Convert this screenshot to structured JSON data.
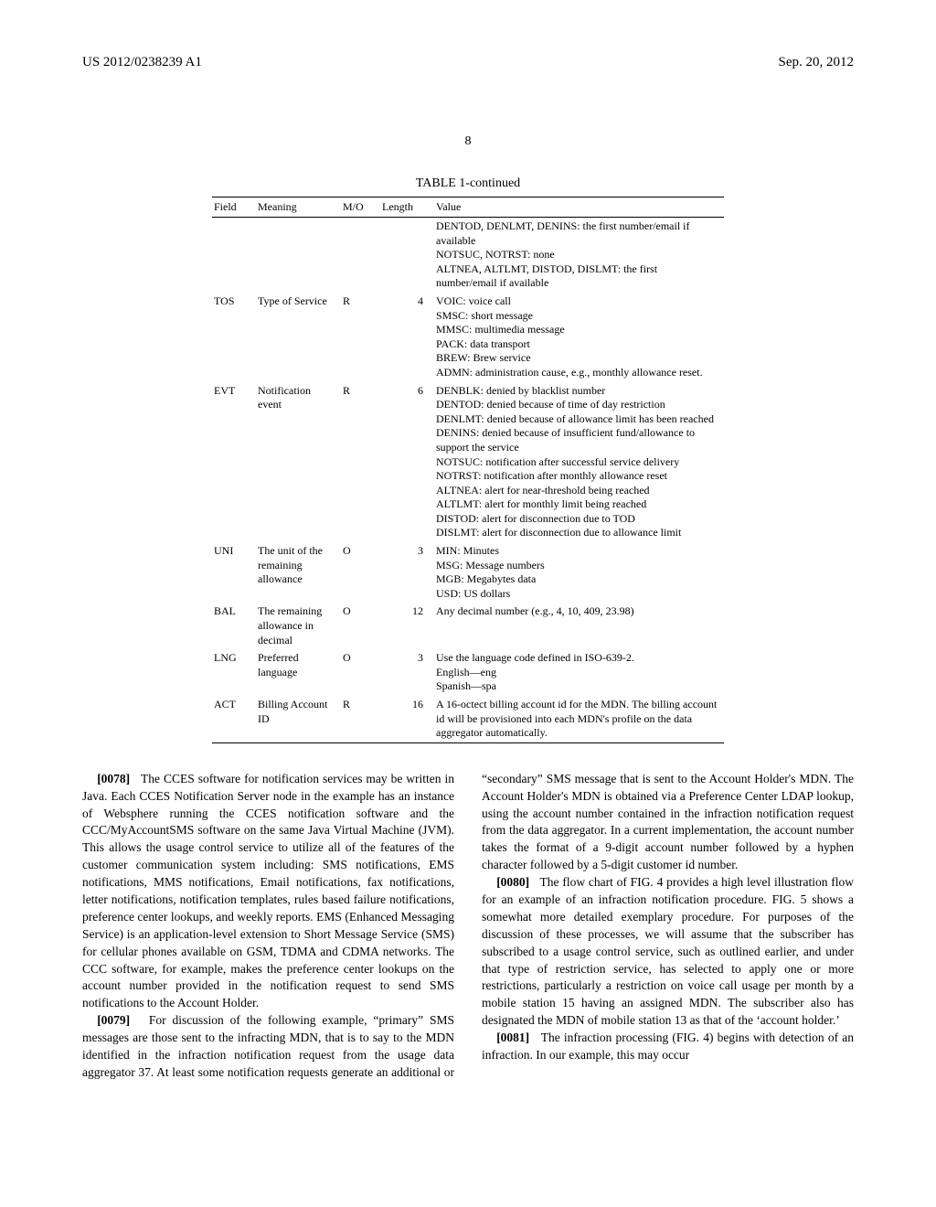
{
  "header": {
    "publication_id": "US 2012/0238239 A1",
    "publication_date": "Sep. 20, 2012"
  },
  "page_number": "8",
  "table": {
    "caption": "TABLE 1-continued",
    "columns": [
      "Field",
      "Meaning",
      "M/O",
      "Length",
      "Value"
    ],
    "rows": [
      {
        "field": "",
        "meaning": "",
        "mo": "",
        "length": "",
        "value": "DENTOD, DENLMT, DENINS: the first number/email if available\nNOTSUC, NOTRST: none\nALTNEA, ALTLMT, DISTOD, DISLMT: the first number/email if available"
      },
      {
        "field": "TOS",
        "meaning": "Type of Service",
        "mo": "R",
        "length": "4",
        "value": "VOIC: voice call\nSMSC: short message\nMMSC: multimedia message\nPACK: data transport\nBREW: Brew service\nADMN: administration cause, e.g., monthly allowance reset."
      },
      {
        "field": "EVT",
        "meaning": "Notification event",
        "mo": "R",
        "length": "6",
        "value": "DENBLK: denied by blacklist number\nDENTOD: denied because of time of day restriction\nDENLMT: denied because of allowance limit has been reached\nDENINS: denied because of insufficient fund/allowance to support the service\nNOTSUC: notification after successful service delivery\nNOTRST: notification after monthly allowance reset\nALTNEA: alert for near-threshold being reached\nALTLMT: alert for monthly limit being reached\nDISTOD: alert for disconnection due to TOD\nDISLMT: alert for disconnection due to allowance limit"
      },
      {
        "field": "UNI",
        "meaning": "The unit of the remaining allowance",
        "mo": "O",
        "length": "3",
        "value": "MIN: Minutes\nMSG: Message numbers\nMGB: Megabytes data\nUSD: US dollars"
      },
      {
        "field": "BAL",
        "meaning": "The remaining allowance in decimal",
        "mo": "O",
        "length": "12",
        "value": "Any decimal number (e.g., 4, 10, 409, 23.98)"
      },
      {
        "field": "LNG",
        "meaning": "Preferred language",
        "mo": "O",
        "length": "3",
        "value": "Use the language code defined in ISO-639-2.\nEnglish—eng\nSpanish—spa"
      },
      {
        "field": "ACT",
        "meaning": "Billing Account ID",
        "mo": "R",
        "length": "16",
        "value": "A 16-octect billing account id for the MDN. The billing account id will be provisioned into each MDN's profile on the data aggregator automatically."
      }
    ]
  },
  "paragraphs": {
    "p78": {
      "num": "[0078]",
      "text": "The CCES software for notification services may be written in Java. Each CCES Notification Server node in the example has an instance of Websphere running the CCES notification software and the CCC/MyAccountSMS software on the same Java Virtual Machine (JVM). This allows the usage control service to utilize all of the features of the customer communication system including: SMS notifications, EMS notifications, MMS notifications, Email notifications, fax notifications, letter notifications, notification templates, rules based failure notifications, preference center lookups, and weekly reports. EMS (Enhanced Messaging Service) is an application-level extension to Short Message Service (SMS) for cellular phones available on GSM, TDMA and CDMA networks. The CCC software, for example, makes the preference center lookups on the account number provided in the notification request to send SMS notifications to the Account Holder."
    },
    "p79": {
      "num": "[0079]",
      "text": "For discussion of the following example, “primary” SMS messages are those sent to the infracting MDN, that is to say to the MDN identified in the infraction notification request from the usage data aggregator 37. At least some notification requests generate an additional or “secondary” SMS message that is sent to the Account Holder's MDN. The Account Holder's MDN is obtained via a Preference Center LDAP lookup, using the account number contained in the infraction notification request from the data aggregator. In a current implementation, the account number takes the format of a 9-digit account number followed by a hyphen character followed by a 5-digit customer id number."
    },
    "p80": {
      "num": "[0080]",
      "text": "The flow chart of FIG. 4 provides a high level illustration flow for an example of an infraction notification procedure. FIG. 5 shows a somewhat more detailed exemplary procedure. For purposes of the discussion of these processes, we will assume that the subscriber has subscribed to a usage control service, such as outlined earlier, and under that type of restriction service, has selected to apply one or more restrictions, particularly a restriction on voice call usage per month by a mobile station 15 having an assigned MDN. The subscriber also has designated the MDN of mobile station 13 as that of the ‘account holder.’"
    },
    "p81": {
      "num": "[0081]",
      "text": "The infraction processing (FIG. 4) begins with detection of an infraction. In our example, this may occur"
    }
  }
}
